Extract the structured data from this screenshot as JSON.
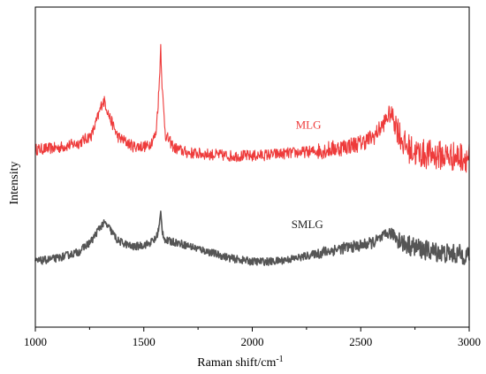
{
  "chart_data": {
    "type": "line",
    "title": "",
    "xlabel": "Raman shift/cm-1",
    "xlabel_parts": {
      "main": "Raman shift/cm",
      "superscript": "-1"
    },
    "ylabel": "Intensity",
    "xlim": [
      1000,
      3000
    ],
    "ylim": [
      0,
      1
    ],
    "yticks_shown": false,
    "grid": false,
    "legend": "none",
    "x_ticks": [
      "1000",
      "1500",
      "2000",
      "2500",
      "3000"
    ],
    "series": [
      {
        "name": "MLG",
        "color": "#ee3b3b",
        "noise": 0.018,
        "x": [
          1000,
          1100,
          1200,
          1260,
          1290,
          1310,
          1320,
          1340,
          1380,
          1450,
          1520,
          1555,
          1570,
          1578,
          1585,
          1600,
          1640,
          1700,
          1800,
          1900,
          2000,
          2100,
          2200,
          2300,
          2400,
          2500,
          2560,
          2600,
          2630,
          2650,
          2670,
          2700,
          2750,
          2800,
          2900,
          3000
        ],
        "y": [
          0.555,
          0.56,
          0.575,
          0.6,
          0.66,
          0.705,
          0.705,
          0.66,
          0.595,
          0.565,
          0.565,
          0.6,
          0.74,
          0.88,
          0.74,
          0.6,
          0.56,
          0.545,
          0.54,
          0.535,
          0.535,
          0.54,
          0.545,
          0.55,
          0.56,
          0.575,
          0.595,
          0.63,
          0.665,
          0.66,
          0.62,
          0.57,
          0.545,
          0.54,
          0.535,
          0.53
        ]
      },
      {
        "name": "SMLG",
        "color": "#555555",
        "noise": 0.012,
        "x": [
          1000,
          1100,
          1200,
          1260,
          1300,
          1320,
          1340,
          1380,
          1450,
          1520,
          1555,
          1570,
          1578,
          1585,
          1600,
          1650,
          1700,
          1800,
          1900,
          2000,
          2100,
          2200,
          2300,
          2400,
          2500,
          2560,
          2600,
          2630,
          2660,
          2700,
          2800,
          2900,
          3000
        ],
        "y": [
          0.205,
          0.215,
          0.235,
          0.27,
          0.315,
          0.325,
          0.31,
          0.27,
          0.25,
          0.26,
          0.275,
          0.31,
          0.355,
          0.3,
          0.27,
          0.265,
          0.255,
          0.235,
          0.215,
          0.205,
          0.205,
          0.215,
          0.23,
          0.245,
          0.255,
          0.265,
          0.28,
          0.295,
          0.285,
          0.26,
          0.24,
          0.23,
          0.225
        ]
      }
    ],
    "annotations": [
      {
        "text": "MLG",
        "x": 2200,
        "y": 0.62,
        "color": "#ee3b3b"
      },
      {
        "text": "SMLG",
        "x": 2180,
        "y": 0.31,
        "color": "#222222"
      }
    ]
  }
}
